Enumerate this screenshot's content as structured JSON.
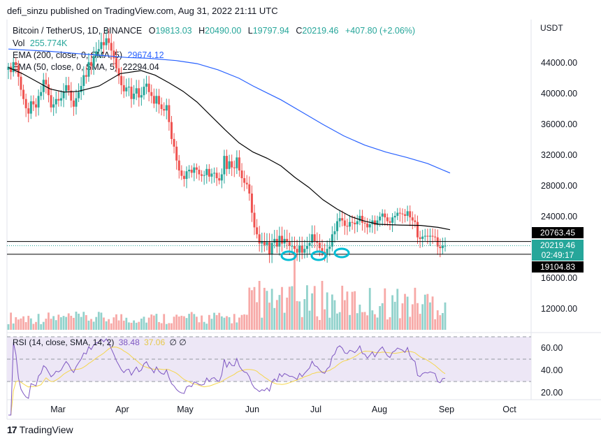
{
  "publisher_text": "defi_sinzu published on TradingView.com, Aug 31, 2022 21:11 UTC",
  "symbol_line": {
    "symbol": "Bitcoin / TetherUS, 1D, BINANCE",
    "o_label": "O",
    "o": "19813.03",
    "h_label": "H",
    "h": "20490.00",
    "l_label": "L",
    "l": "19797.94",
    "c_label": "C",
    "c": "20219.46",
    "change": "+407.80 (+2.06%)"
  },
  "vol_legend": {
    "label": "Vol",
    "value": "255.774K"
  },
  "ema200_legend": {
    "label": "EMA (200, close, 0, SMA, 5)",
    "value": "29674.12"
  },
  "ema50_legend": {
    "label": "EMA (50, close, 0, SMA, 5)",
    "value": "22294.04"
  },
  "rsi_legend": {
    "label": "RSI (14, close, SMA, 14, 2)",
    "rsi": "38.48",
    "sma": "37.06",
    "extra": "∅ ∅"
  },
  "currency": "USDT",
  "price_tags": {
    "upper_line": "20763.45",
    "last": "20219.46",
    "countdown": "02:49:17",
    "lower_line": "19104.83"
  },
  "footer": {
    "brand": "TradingView",
    "logo_mark": "17"
  },
  "colors": {
    "up": "#26a69a",
    "down": "#ef5350",
    "ema200": "#2962ff",
    "ema50": "#000000",
    "rsi": "#7e57c2",
    "rsi_ma": "#f5d64e",
    "rsi_band": "#ede7f6",
    "marker": "#00bcd4"
  },
  "chart_data": {
    "type": "candlestick",
    "title": "Bitcoin / TetherUS, 1D, BINANCE",
    "price_axis": {
      "ticks": [
        44000,
        40000,
        36000,
        32000,
        28000,
        24000,
        16000,
        12000
      ],
      "tick_labels": [
        "44000.00",
        "40000.00",
        "36000.00",
        "32000.00",
        "28000.00",
        "24000.00",
        "16000.00",
        "12000.00"
      ]
    },
    "rsi_axis": {
      "ticks": [
        60,
        40,
        20
      ],
      "tick_labels": [
        "60.00",
        "40.00",
        "20.00"
      ],
      "bands": [
        70,
        50,
        30
      ]
    },
    "x_ticks": [
      "Mar",
      "Apr",
      "May",
      "Jun",
      "Jul",
      "Aug",
      "Sep",
      "Oct"
    ],
    "horizontal_lines": [
      20763.45,
      19104.83
    ],
    "ema200_path": [
      [
        0,
        45800
      ],
      [
        20,
        45700
      ],
      [
        60,
        45500
      ],
      [
        100,
        45200
      ],
      [
        130,
        45000
      ],
      [
        170,
        44700
      ],
      [
        200,
        44600
      ],
      [
        240,
        44300
      ],
      [
        270,
        43900
      ],
      [
        300,
        43100
      ],
      [
        330,
        42000
      ],
      [
        350,
        41000
      ],
      [
        390,
        39200
      ],
      [
        420,
        37600
      ],
      [
        450,
        36000
      ],
      [
        480,
        34500
      ],
      [
        510,
        33300
      ],
      [
        540,
        32400
      ],
      [
        570,
        31700
      ],
      [
        600,
        30900
      ],
      [
        632,
        29670
      ]
    ],
    "ema50_path": [
      [
        0,
        43400
      ],
      [
        20,
        42600
      ],
      [
        40,
        41600
      ],
      [
        60,
        40600
      ],
      [
        80,
        40200
      ],
      [
        100,
        40300
      ],
      [
        130,
        41000
      ],
      [
        160,
        42600
      ],
      [
        190,
        43000
      ],
      [
        210,
        42400
      ],
      [
        230,
        41400
      ],
      [
        250,
        40300
      ],
      [
        270,
        38900
      ],
      [
        290,
        37100
      ],
      [
        310,
        35300
      ],
      [
        330,
        33600
      ],
      [
        350,
        32400
      ],
      [
        370,
        31600
      ],
      [
        390,
        30600
      ],
      [
        410,
        29100
      ],
      [
        430,
        27800
      ],
      [
        450,
        26200
      ],
      [
        470,
        25000
      ],
      [
        490,
        24000
      ],
      [
        510,
        23400
      ],
      [
        530,
        23000
      ],
      [
        560,
        22900
      ],
      [
        590,
        22850
      ],
      [
        615,
        22600
      ],
      [
        632,
        22300
      ]
    ],
    "closes": [
      43500,
      42800,
      44100,
      43700,
      42200,
      40500,
      39300,
      38100,
      37400,
      39000,
      38600,
      38200,
      39700,
      40200,
      41800,
      41200,
      39800,
      38200,
      38600,
      39300,
      39100,
      39400,
      40300,
      41100,
      40400,
      39100,
      38300,
      39400,
      40200,
      41000,
      42400,
      42200,
      44100,
      43600,
      44900,
      45500,
      45800,
      46700,
      46300,
      47200,
      46600,
      45600,
      44600,
      43300,
      42300,
      41100,
      40300,
      40800,
      40900,
      39300,
      40000,
      40700,
      39500,
      39800,
      40900,
      41300,
      40200,
      39700,
      38700,
      39700,
      38600,
      38000,
      37800,
      38500,
      36300,
      34100,
      33100,
      31300,
      30000,
      29300,
      28900,
      29900,
      30100,
      29700,
      30400,
      30100,
      29500,
      29300,
      29400,
      30200,
      29200,
      29600,
      29700,
      29000,
      28700,
      29500,
      31900,
      30200,
      31200,
      30400,
      30300,
      31700,
      30000,
      29000,
      28400,
      28200,
      27000,
      24500,
      22600,
      21700,
      20500,
      20800,
      20300,
      20700,
      19100,
      20600,
      21100,
      20100,
      21500,
      20500,
      21100,
      20700,
      20200,
      20200,
      19800,
      19300,
      20200,
      19300,
      19800,
      20200,
      20600,
      21700,
      20800,
      20600,
      19900,
      19400,
      19200,
      19800,
      20100,
      21700,
      22100,
      23400,
      23800,
      23500,
      22800,
      22700,
      23300,
      23200,
      23000,
      23400,
      24100,
      23200,
      23100,
      22600,
      23000,
      23500,
      22900,
      23500,
      24000,
      24400,
      23900,
      23400,
      23200,
      23900,
      24100,
      24500,
      24400,
      24300,
      24100,
      24700,
      23900,
      23500,
      23300,
      21300,
      21100,
      21400,
      21500,
      21400,
      21500,
      21400,
      21300,
      20100,
      19900,
      20200,
      20219
    ]
  }
}
